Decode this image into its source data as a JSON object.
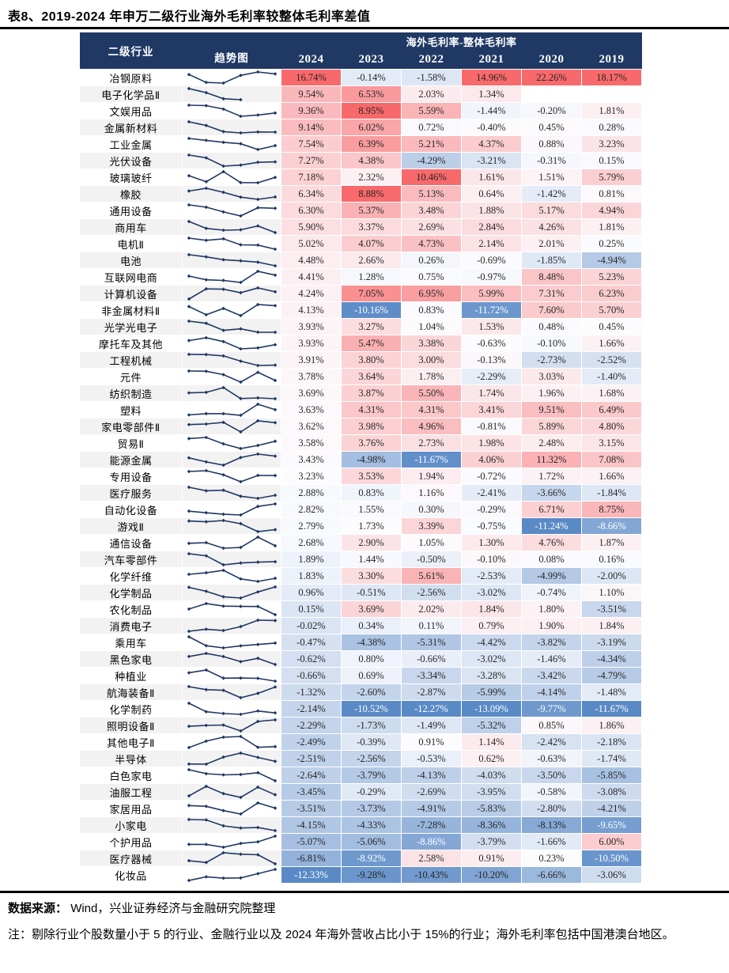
{
  "title": "表8、2019-2024 年申万二级行业海外毛利率较整体毛利率差值",
  "table": {
    "col_industry": "二级行业",
    "col_trend": "趋势图",
    "group_header": "海外毛利率-整体毛利率",
    "years": [
      "2024",
      "2023",
      "2022",
      "2021",
      "2020",
      "2019"
    ],
    "rows": [
      {
        "name": "冶钢原料",
        "values": [
          16.74,
          -0.14,
          -1.58,
          14.96,
          22.26,
          18.17
        ]
      },
      {
        "name": "电子化学品Ⅱ",
        "values": [
          9.54,
          6.53,
          2.03,
          1.34,
          null,
          null
        ]
      },
      {
        "name": "文娱用品",
        "values": [
          9.36,
          8.95,
          5.59,
          -1.44,
          -0.2,
          1.81
        ]
      },
      {
        "name": "金属新材料",
        "values": [
          9.14,
          6.02,
          0.72,
          -0.4,
          0.45,
          0.28
        ]
      },
      {
        "name": "工业金属",
        "values": [
          7.54,
          6.39,
          5.21,
          4.37,
          0.88,
          3.23
        ]
      },
      {
        "name": "光伏设备",
        "values": [
          7.27,
          4.38,
          -4.29,
          -3.21,
          -0.31,
          0.15
        ]
      },
      {
        "name": "玻璃玻纤",
        "values": [
          7.18,
          2.32,
          10.46,
          1.61,
          1.51,
          5.79
        ]
      },
      {
        "name": "橡胶",
        "values": [
          6.34,
          8.88,
          5.13,
          0.64,
          -1.42,
          0.81
        ]
      },
      {
        "name": "通用设备",
        "values": [
          6.3,
          5.37,
          3.48,
          1.88,
          5.17,
          4.94
        ]
      },
      {
        "name": "商用车",
        "values": [
          5.9,
          3.37,
          2.69,
          2.84,
          4.26,
          1.81
        ]
      },
      {
        "name": "电机Ⅱ",
        "values": [
          5.02,
          4.07,
          4.73,
          2.14,
          2.01,
          0.25
        ]
      },
      {
        "name": "电池",
        "values": [
          4.48,
          2.66,
          0.26,
          -0.69,
          -1.85,
          -4.94
        ]
      },
      {
        "name": "互联网电商",
        "values": [
          4.41,
          1.28,
          0.75,
          -0.97,
          8.48,
          5.23
        ]
      },
      {
        "name": "计算机设备",
        "values": [
          4.24,
          7.05,
          6.95,
          5.99,
          7.31,
          6.23
        ]
      },
      {
        "name": "非金属材料Ⅱ",
        "values": [
          4.13,
          -10.16,
          0.83,
          -11.72,
          7.6,
          5.7
        ]
      },
      {
        "name": "光学光电子",
        "values": [
          3.93,
          3.27,
          1.04,
          1.53,
          0.48,
          0.45
        ]
      },
      {
        "name": "摩托车及其他",
        "values": [
          3.93,
          5.47,
          3.38,
          -0.63,
          -0.1,
          1.66
        ]
      },
      {
        "name": "工程机械",
        "values": [
          3.91,
          3.8,
          3.0,
          -0.13,
          -2.73,
          -2.52
        ]
      },
      {
        "name": "元件",
        "values": [
          3.78,
          3.64,
          1.78,
          -2.29,
          3.03,
          -1.4
        ]
      },
      {
        "name": "纺织制造",
        "values": [
          3.69,
          3.87,
          5.5,
          1.74,
          1.96,
          1.68
        ]
      },
      {
        "name": "塑料",
        "values": [
          3.63,
          4.31,
          4.31,
          3.41,
          9.51,
          6.49
        ]
      },
      {
        "name": "家电零部件Ⅱ",
        "values": [
          3.62,
          3.98,
          4.96,
          -0.81,
          5.89,
          4.8
        ]
      },
      {
        "name": "贸易Ⅱ",
        "values": [
          3.58,
          3.76,
          2.73,
          1.98,
          2.48,
          3.15
        ]
      },
      {
        "name": "能源金属",
        "values": [
          3.43,
          -4.98,
          -11.67,
          4.06,
          11.32,
          7.08
        ]
      },
      {
        "name": "专用设备",
        "values": [
          3.23,
          3.53,
          1.94,
          -0.72,
          1.72,
          1.66
        ]
      },
      {
        "name": "医疗服务",
        "values": [
          2.88,
          0.83,
          1.16,
          -2.41,
          -3.66,
          -1.84
        ]
      },
      {
        "name": "自动化设备",
        "values": [
          2.82,
          1.55,
          0.3,
          -0.29,
          6.71,
          8.75
        ]
      },
      {
        "name": "游戏Ⅱ",
        "values": [
          2.79,
          1.73,
          3.39,
          -0.75,
          -11.24,
          -8.66
        ]
      },
      {
        "name": "通信设备",
        "values": [
          2.68,
          2.9,
          1.05,
          1.3,
          4.76,
          1.87
        ]
      },
      {
        "name": "汽车零部件",
        "values": [
          1.89,
          1.44,
          -0.5,
          -0.1,
          0.08,
          0.16
        ]
      },
      {
        "name": "化学纤维",
        "values": [
          1.83,
          3.3,
          5.61,
          -2.53,
          -4.99,
          -2.0
        ]
      },
      {
        "name": "化学制品",
        "values": [
          0.96,
          -0.51,
          -2.56,
          -3.02,
          -0.74,
          1.1
        ]
      },
      {
        "name": "农化制品",
        "values": [
          0.15,
          3.69,
          2.02,
          1.84,
          1.8,
          -3.51
        ]
      },
      {
        "name": "消费电子",
        "values": [
          -0.02,
          0.34,
          0.11,
          0.79,
          1.9,
          1.84
        ]
      },
      {
        "name": "乘用车",
        "values": [
          -0.47,
          -4.38,
          -5.31,
          -4.42,
          -3.82,
          -3.19
        ]
      },
      {
        "name": "黑色家电",
        "values": [
          -0.62,
          0.8,
          -0.66,
          -3.02,
          -1.46,
          -4.34
        ]
      },
      {
        "name": "种植业",
        "values": [
          -0.66,
          0.69,
          -3.34,
          -3.28,
          -3.42,
          -4.79
        ]
      },
      {
        "name": "航海装备Ⅱ",
        "values": [
          -1.32,
          -2.6,
          -2.87,
          -5.99,
          -4.14,
          -1.48
        ]
      },
      {
        "name": "化学制药",
        "values": [
          -2.14,
          -10.52,
          -12.27,
          -13.09,
          -9.77,
          -11.67
        ]
      },
      {
        "name": "照明设备Ⅱ",
        "values": [
          -2.29,
          -1.73,
          -1.49,
          -5.32,
          0.85,
          1.86
        ]
      },
      {
        "name": "其他电子Ⅱ",
        "values": [
          -2.49,
          -0.39,
          0.91,
          1.14,
          -2.42,
          -2.18
        ]
      },
      {
        "name": "半导体",
        "values": [
          -2.51,
          -2.56,
          -0.53,
          0.62,
          -0.63,
          -1.74
        ]
      },
      {
        "name": "白色家电",
        "values": [
          -2.64,
          -3.79,
          -4.13,
          -4.03,
          -3.5,
          -5.85
        ]
      },
      {
        "name": "油服工程",
        "values": [
          -3.45,
          -0.29,
          -2.69,
          -3.95,
          -0.58,
          -3.08
        ]
      },
      {
        "name": "家居用品",
        "values": [
          -3.51,
          -3.73,
          -4.91,
          -5.83,
          -2.8,
          -4.21
        ]
      },
      {
        "name": "小家电",
        "values": [
          -4.15,
          -4.33,
          -7.28,
          -8.36,
          -8.13,
          -9.65
        ]
      },
      {
        "name": "个护用品",
        "values": [
          -5.07,
          -5.06,
          -8.86,
          -3.79,
          -1.66,
          6.0
        ]
      },
      {
        "name": "医疗器械",
        "values": [
          -6.81,
          -8.92,
          2.58,
          0.91,
          0.23,
          -10.5
        ]
      },
      {
        "name": "化妆品",
        "values": [
          -12.33,
          -9.28,
          -10.43,
          -10.2,
          -6.66,
          -3.06
        ]
      }
    ],
    "white_text_cells": [
      [
        14,
        1
      ],
      [
        14,
        3
      ],
      [
        23,
        2
      ],
      [
        27,
        4
      ],
      [
        27,
        5
      ],
      [
        38,
        1
      ],
      [
        38,
        2
      ],
      [
        38,
        3
      ],
      [
        38,
        4
      ],
      [
        38,
        5
      ],
      [
        45,
        5
      ],
      [
        46,
        2
      ],
      [
        47,
        1
      ],
      [
        47,
        5
      ],
      [
        48,
        0
      ]
    ]
  },
  "colors": {
    "header_bg": "#1F3864",
    "header_text": "#FFFFFF",
    "scale_max_red": "#F8696B",
    "scale_mid": "#FCFCFF",
    "scale_min_blue": "#5A8AC6",
    "sparkline": "#1F3864",
    "stripe": "#F2F2F2",
    "blank_cell": "#FFFFFF",
    "value_text": "#262626",
    "white_text": "#FFFFFF",
    "rule": "#000000"
  },
  "footer": {
    "source_label": "数据来源：",
    "source_text": "Wind，兴业证券经济与金融研究院整理",
    "note": "注：剔除行业个股数量小于 5 的行业、金融行业以及 2024 年海外营收占比小于 15%的行业；海外毛利率包括中国港澳台地区。"
  }
}
